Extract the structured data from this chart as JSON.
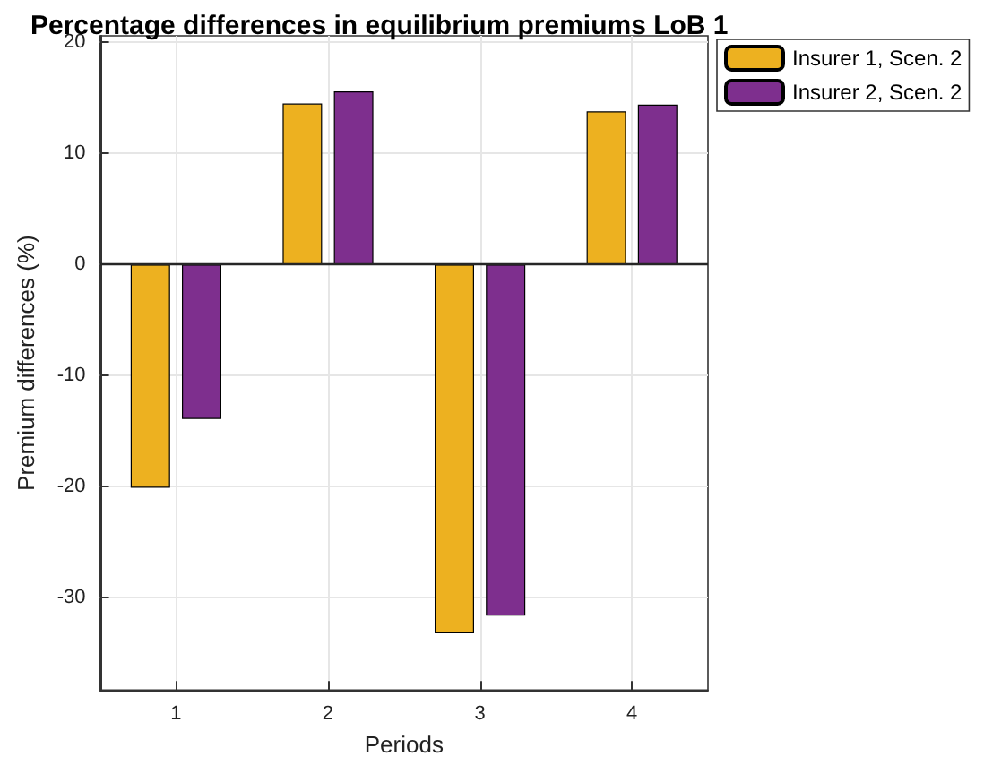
{
  "chart_data": {
    "type": "bar",
    "title": "Percentage differences in equilibrium premiums LoB 1",
    "xlabel": "Periods",
    "ylabel": "Premium differences (%)",
    "x": [
      1,
      2,
      3,
      4
    ],
    "xlim": [
      0.5,
      4.5
    ],
    "xticks": [
      1,
      2,
      3,
      4
    ],
    "ylim": [
      -38.3,
      20.6
    ],
    "yticks": [
      -30,
      -20,
      -10,
      0,
      10,
      20
    ],
    "series": [
      {
        "name": "Insurer 1, Scen. 2",
        "color": "#edb120",
        "values": [
          -20.1,
          14.5,
          -33.2,
          13.8
        ]
      },
      {
        "name": "Insurer 2, Scen. 2",
        "color": "#7e2f8e",
        "values": [
          -13.9,
          15.6,
          -31.6,
          14.4
        ]
      }
    ],
    "ref_lines": [
      {
        "axis": "y",
        "value": 0,
        "color": "#262626"
      }
    ],
    "grid": true,
    "legend": "top right"
  }
}
